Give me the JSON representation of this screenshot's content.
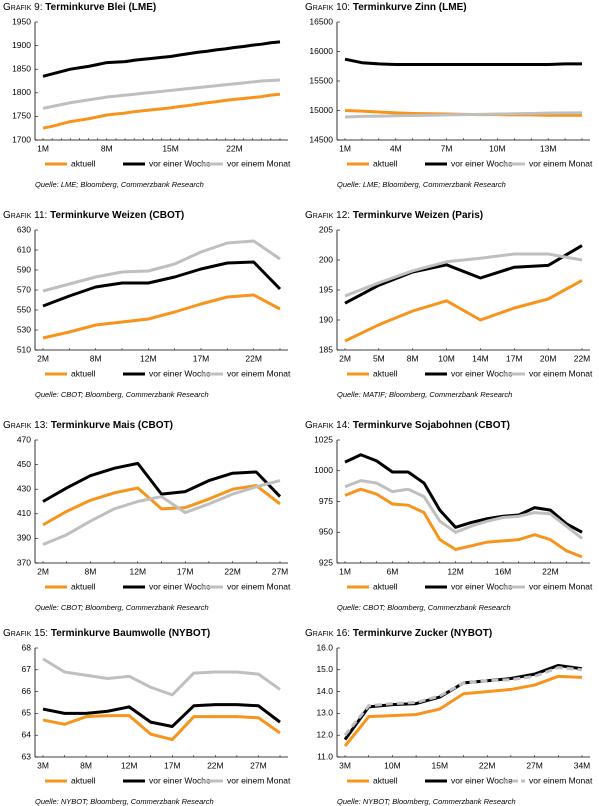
{
  "chart_data": [
    {
      "type": "line",
      "figure_label": "Grafik 9:",
      "title": "Terminkurve Blei (LME)",
      "source": "Quelle: LME; Bloomberg, Commerzbank Research",
      "categories": [
        "1M",
        null,
        null,
        null,
        null,
        null,
        null,
        "8M",
        null,
        null,
        null,
        null,
        null,
        null,
        "15M",
        null,
        null,
        null,
        null,
        null,
        null,
        "22M",
        null,
        null,
        null,
        null,
        null
      ],
      "ylim": [
        1700,
        1950
      ],
      "yticks": [
        1700,
        1750,
        1800,
        1850,
        1900,
        1950
      ],
      "series": [
        {
          "name": "aktuell",
          "color": "#f7941d",
          "values": [
            1725,
            1729,
            1734,
            1739,
            1742,
            1745,
            1749,
            1753,
            1755,
            1757,
            1760,
            1762,
            1764,
            1766,
            1768,
            1771,
            1773,
            1776,
            1779,
            1781,
            1784,
            1786,
            1788,
            1790,
            1792,
            1795,
            1797
          ]
        },
        {
          "name": "vor einer Woche",
          "color": "#000000",
          "values": [
            1835,
            1840,
            1845,
            1850,
            1853,
            1856,
            1860,
            1864,
            1865,
            1866,
            1869,
            1871,
            1873,
            1875,
            1877,
            1880,
            1883,
            1886,
            1888,
            1891,
            1893,
            1896,
            1898,
            1901,
            1903,
            1906,
            1908
          ]
        },
        {
          "name": "vor einem Monat",
          "color": "#bfbfbf",
          "values": [
            1767,
            1771,
            1775,
            1779,
            1782,
            1785,
            1788,
            1791,
            1793,
            1795,
            1797,
            1799,
            1801,
            1803,
            1805,
            1807,
            1809,
            1811,
            1813,
            1815,
            1817,
            1819,
            1821,
            1823,
            1825,
            1826,
            1827
          ]
        }
      ]
    },
    {
      "type": "line",
      "figure_label": "Grafik 10:",
      "title": "Terminkurve Zinn (LME)",
      "source": "Quelle: LME; Bloomberg, Commerzbank Research",
      "categories": [
        "1M",
        null,
        null,
        "4M",
        null,
        null,
        "7M",
        null,
        null,
        "10M",
        null,
        null,
        "13M",
        null,
        null
      ],
      "ylim": [
        14500,
        16500
      ],
      "yticks": [
        14500,
        15000,
        15500,
        16000,
        16500
      ],
      "series": [
        {
          "name": "aktuell",
          "color": "#f7941d",
          "values": [
            15000,
            14990,
            14975,
            14960,
            14950,
            14945,
            14940,
            14935,
            14930,
            14930,
            14925,
            14925,
            14920,
            14920,
            14920
          ]
        },
        {
          "name": "vor einer Woche",
          "color": "#000000",
          "values": [
            15870,
            15810,
            15790,
            15780,
            15780,
            15780,
            15780,
            15780,
            15780,
            15780,
            15780,
            15780,
            15780,
            15790,
            15790
          ]
        },
        {
          "name": "vor einem Monat",
          "color": "#bfbfbf",
          "values": [
            14890,
            14900,
            14905,
            14910,
            14915,
            14920,
            14925,
            14930,
            14935,
            14940,
            14945,
            14950,
            14955,
            14960,
            14960
          ]
        }
      ]
    },
    {
      "type": "line",
      "figure_label": "Grafik 11:",
      "title": "Terminkurve Weizen (CBOT)",
      "source": "Quelle: CBOT; Bloomberg, Commerzbank Research",
      "categories": [
        "2M",
        null,
        "8M",
        null,
        "12M",
        null,
        "17M",
        null,
        "22M",
        null
      ],
      "ylim": [
        510,
        630
      ],
      "yticks": [
        510,
        530,
        550,
        570,
        590,
        610,
        630
      ],
      "series": [
        {
          "name": "aktuell",
          "color": "#f7941d",
          "values": [
            522,
            528,
            535,
            538,
            541,
            548,
            556,
            563,
            565,
            551
          ]
        },
        {
          "name": "vor einer Woche",
          "color": "#000000",
          "values": [
            554,
            564,
            573,
            577,
            577,
            583,
            591,
            597,
            598,
            571
          ]
        },
        {
          "name": "vor einem Monat",
          "color": "#bfbfbf",
          "values": [
            569,
            576,
            583,
            588,
            589,
            596,
            608,
            617,
            619,
            601
          ]
        }
      ]
    },
    {
      "type": "line",
      "figure_label": "Grafik 12:",
      "title": "Terminkurve Weizen (Paris)",
      "source": "Quelle: MATIF; Bloomberg, Commerzbank Research",
      "categories": [
        "2M",
        "5M",
        "8M",
        "10M",
        "14M",
        "17M",
        "20M",
        "22M"
      ],
      "ylim": [
        185,
        205
      ],
      "yticks": [
        185,
        190,
        195,
        200,
        205
      ],
      "series": [
        {
          "name": "aktuell",
          "color": "#f7941d",
          "values": [
            186.5,
            189.2,
            191.5,
            193.2,
            190,
            192,
            193.5,
            196.6
          ]
        },
        {
          "name": "vor einer Woche",
          "color": "#000000",
          "values": [
            192.8,
            195.8,
            198,
            199.2,
            197,
            198.8,
            199.1,
            202.4
          ]
        },
        {
          "name": "vor einem Monat",
          "color": "#bfbfbf",
          "values": [
            194,
            196.2,
            198.2,
            199.7,
            200.3,
            201,
            201,
            200
          ]
        }
      ]
    },
    {
      "type": "line",
      "figure_label": "Grafik 13:",
      "title": "Terminkurve Mais (CBOT)",
      "source": "Quelle: CBOT; Bloomberg, Commerzbank Research",
      "categories": [
        "2M",
        null,
        "8M",
        null,
        "12M",
        null,
        "17M",
        null,
        "22M",
        null,
        "27M"
      ],
      "ylim": [
        370,
        470
      ],
      "yticks": [
        370,
        390,
        410,
        430,
        450,
        470
      ],
      "series": [
        {
          "name": "aktuell",
          "color": "#f7941d",
          "values": [
            401,
            412,
            421,
            427,
            431,
            414,
            415,
            422,
            430,
            433,
            418
          ]
        },
        {
          "name": "vor einer Woche",
          "color": "#000000",
          "values": [
            420,
            431,
            441,
            447,
            451,
            426,
            428,
            437,
            443,
            444,
            424
          ]
        },
        {
          "name": "vor einem Monat",
          "color": "#bfbfbf",
          "values": [
            385,
            393,
            404,
            414,
            420,
            424,
            411,
            418,
            426,
            432,
            437
          ]
        }
      ]
    },
    {
      "type": "line",
      "figure_label": "Grafik 14:",
      "title": "Terminkurve Sojabohnen (CBOT)",
      "source": "Quelle: CBOT; Bloomberg, Commerzbank Research",
      "categories": [
        "1M",
        null,
        null,
        "6M",
        null,
        null,
        null,
        "12M",
        null,
        null,
        "16M",
        null,
        null,
        "22M",
        null,
        null
      ],
      "ylim": [
        925,
        1025
      ],
      "yticks": [
        925,
        950,
        975,
        1000,
        1025
      ],
      "series": [
        {
          "name": "aktuell",
          "color": "#f7941d",
          "values": [
            980,
            985,
            981,
            973,
            972,
            966,
            944,
            936,
            939,
            942,
            943,
            944,
            948,
            944,
            935,
            930
          ]
        },
        {
          "name": "vor einer Woche",
          "color": "#000000",
          "values": [
            1007,
            1013,
            1008,
            999,
            999,
            990,
            968,
            954,
            958,
            961,
            963,
            964,
            970,
            968,
            957,
            950
          ]
        },
        {
          "name": "vor einem Monat",
          "color": "#bfbfbf",
          "values": [
            987,
            992,
            990,
            983,
            985,
            979,
            959,
            950,
            955,
            959,
            962,
            963,
            966,
            965,
            955,
            945
          ]
        }
      ]
    },
    {
      "type": "line",
      "figure_label": "Grafik 15:",
      "title": "Terminkurve Baumwolle (NYBOT)",
      "source": "Quelle: NYBOT; Bloomberg, Commerzbank Research",
      "categories": [
        "3M",
        null,
        "8M",
        null,
        "12M",
        null,
        "17M",
        null,
        "22M",
        null,
        "27M",
        null
      ],
      "ylim": [
        63,
        68
      ],
      "yticks": [
        63,
        64,
        65,
        66,
        67,
        68
      ],
      "series": [
        {
          "name": "aktuell",
          "color": "#f7941d",
          "values": [
            64.7,
            64.5,
            64.85,
            64.9,
            64.9,
            64.05,
            63.8,
            64.85,
            64.85,
            64.85,
            64.8,
            64.1
          ]
        },
        {
          "name": "vor einer Woche",
          "color": "#000000",
          "values": [
            65.2,
            65.0,
            65.0,
            65.1,
            65.3,
            64.6,
            64.4,
            65.35,
            65.4,
            65.4,
            65.35,
            64.6
          ]
        },
        {
          "name": "vor einem Monat",
          "color": "#bfbfbf",
          "values": [
            67.5,
            66.9,
            66.75,
            66.6,
            66.7,
            66.2,
            65.85,
            66.85,
            66.9,
            66.9,
            66.8,
            66.1
          ]
        }
      ]
    },
    {
      "type": "line",
      "figure_label": "Grafik 16:",
      "title": "Terminkurve Zucker (NYBOT)",
      "source": "Quelle: NYBOT; Bloomberg, Commerzbank Research",
      "categories": [
        "3M",
        null,
        "10M",
        null,
        "15M",
        null,
        "22M",
        null,
        "27M",
        null,
        "34M"
      ],
      "ylim": [
        11,
        16
      ],
      "yticks": [
        {
          "value": 11,
          "label": "11.0"
        },
        {
          "value": 12,
          "label": "12.0"
        },
        {
          "value": 13,
          "label": "13.0"
        },
        {
          "value": 14,
          "label": "14.0"
        },
        {
          "value": 15,
          "label": "15.0"
        },
        {
          "value": 16,
          "label": "16.0"
        }
      ],
      "series": [
        {
          "name": "aktuell",
          "color": "#f7941d",
          "values": [
            11.5,
            12.85,
            12.9,
            12.95,
            13.2,
            13.9,
            14.0,
            14.1,
            14.3,
            14.7,
            14.65
          ]
        },
        {
          "name": "vor einer Woche",
          "color": "#000000",
          "values": [
            11.8,
            13.3,
            13.4,
            13.45,
            13.75,
            14.4,
            14.5,
            14.6,
            14.8,
            15.2,
            15.05
          ]
        },
        {
          "name": "vor einem Monat",
          "color": "#bfbfbf",
          "dash": true,
          "values": [
            12.0,
            13.35,
            13.45,
            13.5,
            13.8,
            14.4,
            14.5,
            14.55,
            14.7,
            15.1,
            15.0
          ]
        }
      ]
    }
  ]
}
